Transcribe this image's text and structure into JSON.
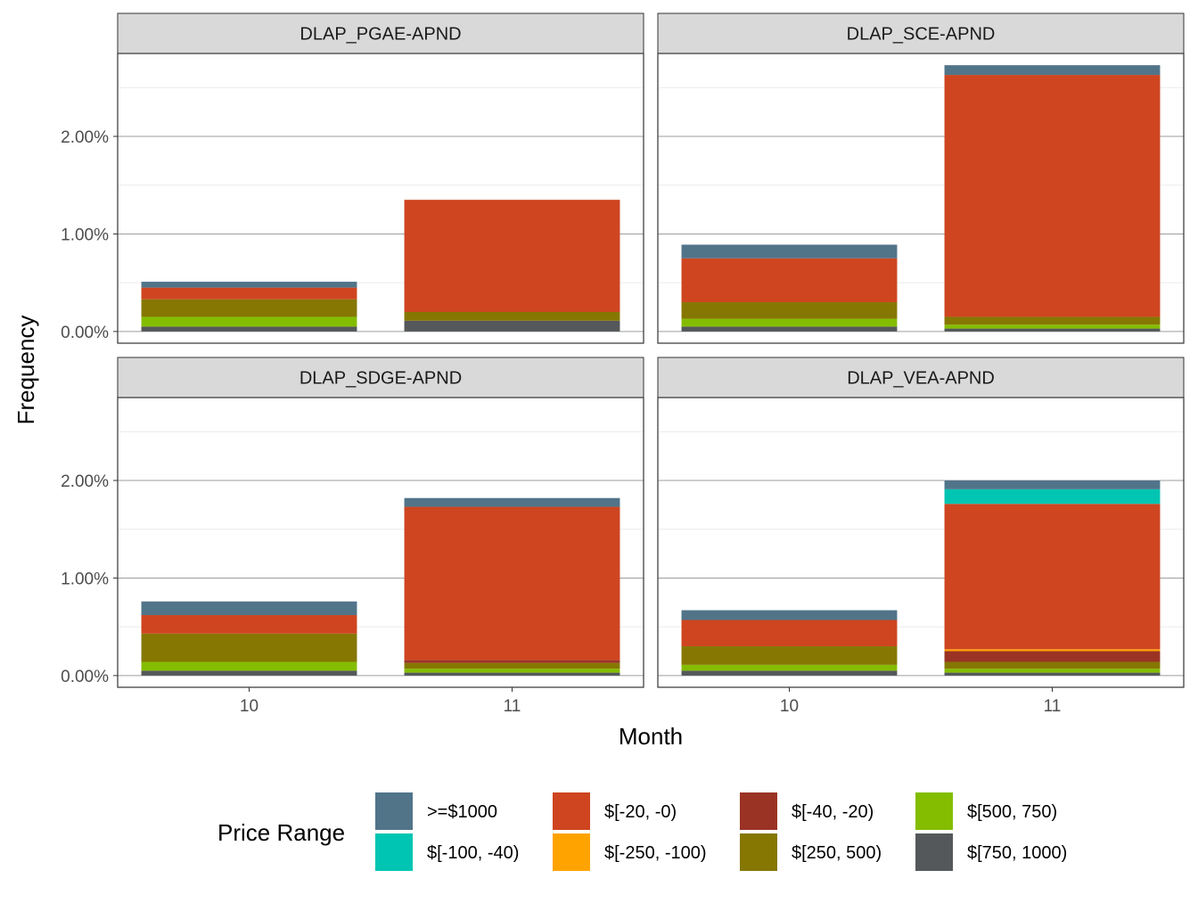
{
  "chart_data": {
    "type": "bar",
    "stacked": true,
    "facet_layout": "2x2",
    "xlabel": "Month",
    "ylabel": "Frequency",
    "ylim": [
      -0.0012,
      0.0285
    ],
    "yticks": [
      0,
      0.01,
      0.02
    ],
    "ytick_labels": [
      "0.00%",
      "1.00%",
      "2.00%"
    ],
    "categories": [
      "10",
      "11"
    ],
    "grid": true,
    "legend": {
      "title": "Price Range",
      "placement": "bottom",
      "entries": [
        {
          "key": "ge1000",
          "label": ">=$1000",
          "color": "#517489"
        },
        {
          "key": "m100_m40",
          "label": "$[-100, -40)",
          "color": "#00C5B2"
        },
        {
          "key": "m20_0",
          "label": "$[-20, -0)",
          "color": "#CE4520"
        },
        {
          "key": "m250_m100",
          "label": "$[-250, -100)",
          "color": "#FFA300"
        },
        {
          "key": "m40_m20",
          "label": "$[-40, -20)",
          "color": "#9A3324"
        },
        {
          "key": "r250_500",
          "label": "$[250, 500)",
          "color": "#857701"
        },
        {
          "key": "r500_750",
          "label": "$[500, 750)",
          "color": "#84BD00"
        },
        {
          "key": "r750_1000",
          "label": "$[750, 1000)",
          "color": "#54585A"
        }
      ]
    },
    "stack_order": [
      "r750_1000",
      "r500_750",
      "r250_500",
      "m40_m20",
      "m250_m100",
      "m20_0",
      "m100_m40",
      "ge1000"
    ],
    "panels": [
      {
        "title": "DLAP_PGAE-APND",
        "bars": [
          {
            "category": "10",
            "values": {
              "r750_1000": 0.0005,
              "r500_750": 0.001,
              "r250_500": 0.0018,
              "m40_m20": 0,
              "m250_m100": 0,
              "m20_0": 0.0012,
              "m100_m40": 0,
              "ge1000": 0.0006
            }
          },
          {
            "category": "11",
            "values": {
              "r750_1000": 0.0011,
              "r500_750": 0,
              "r250_500": 0.0009,
              "m40_m20": 0,
              "m250_m100": 0,
              "m20_0": 0.0115,
              "m100_m40": 0,
              "ge1000": 0
            }
          }
        ]
      },
      {
        "title": "DLAP_SCE-APND",
        "bars": [
          {
            "category": "10",
            "values": {
              "r750_1000": 0.0005,
              "r500_750": 0.0008,
              "r250_500": 0.0017,
              "m40_m20": 0,
              "m250_m100": 0,
              "m20_0": 0.0045,
              "m100_m40": 0,
              "ge1000": 0.0014
            }
          },
          {
            "category": "11",
            "values": {
              "r750_1000": 0.0003,
              "r500_750": 0.0004,
              "r250_500": 0.0008,
              "m40_m20": 0,
              "m250_m100": 0,
              "m20_0": 0.0248,
              "m100_m40": 0,
              "ge1000": 0.001
            }
          }
        ]
      },
      {
        "title": "DLAP_SDGE-APND",
        "bars": [
          {
            "category": "10",
            "values": {
              "r750_1000": 0.0005,
              "r500_750": 0.0009,
              "r250_500": 0.0029,
              "m40_m20": 0,
              "m250_m100": 0,
              "m20_0": 0.0019,
              "m100_m40": 0,
              "ge1000": 0.0014
            }
          },
          {
            "category": "11",
            "values": {
              "r750_1000": 0.0003,
              "r500_750": 0.0004,
              "r250_500": 0.0006,
              "m40_m20": 0.0003,
              "m250_m100": 0,
              "m20_0": 0.0157,
              "m100_m40": 0,
              "ge1000": 0.0009
            }
          }
        ]
      },
      {
        "title": "DLAP_VEA-APND",
        "bars": [
          {
            "category": "10",
            "values": {
              "r750_1000": 0.0005,
              "r500_750": 0.0006,
              "r250_500": 0.0019,
              "m40_m20": 0,
              "m250_m100": 0,
              "m20_0": 0.0027,
              "m100_m40": 0,
              "ge1000": 0.001
            }
          },
          {
            "category": "11",
            "values": {
              "r750_1000": 0.0003,
              "r500_750": 0.0004,
              "r250_500": 0.0007,
              "m40_m20": 0.0011,
              "m250_m100": 0.0002,
              "m20_0": 0.0149,
              "m100_m40": 0.0015,
              "ge1000": 0.0009
            }
          }
        ]
      }
    ]
  }
}
